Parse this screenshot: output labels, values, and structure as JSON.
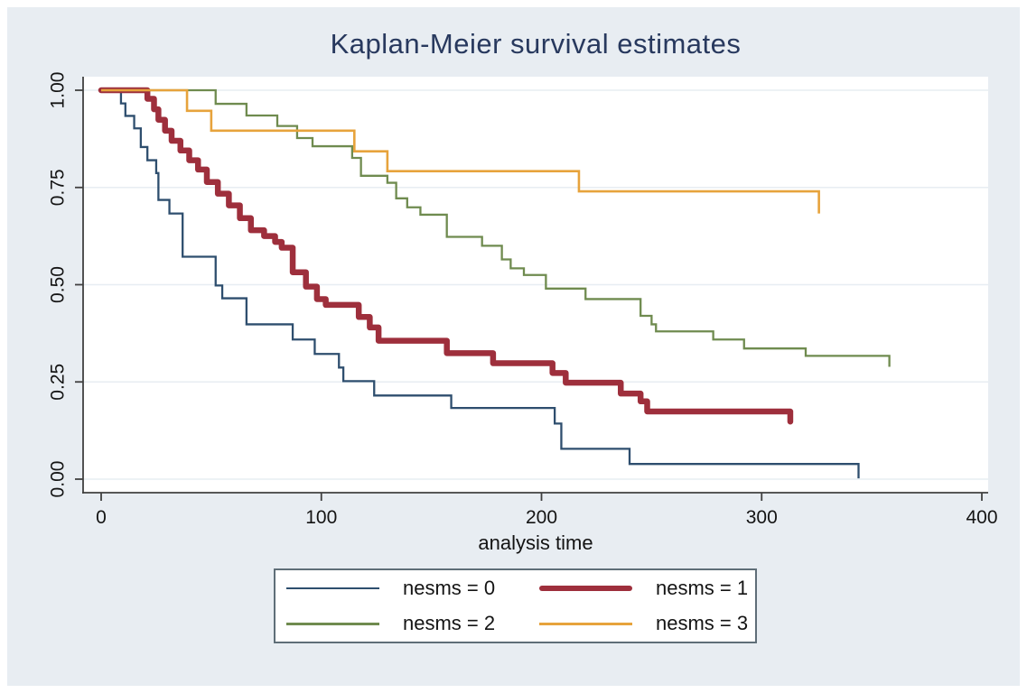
{
  "chart_data": {
    "type": "line",
    "variant": "kaplan-meier-step",
    "title": "Kaplan-Meier survival estimates",
    "title_color": "#28395e",
    "xlabel": "analysis time",
    "ylabel": "",
    "xlim": [
      0,
      400
    ],
    "ylim": [
      0,
      1
    ],
    "x_ticks": [
      0,
      100,
      200,
      300,
      400
    ],
    "x_tick_labels": [
      "0",
      "100",
      "200",
      "300",
      "400"
    ],
    "y_ticks": [
      0,
      0.25,
      0.5,
      0.75,
      1
    ],
    "y_tick_labels": [
      "0.00",
      "0.25",
      "0.50",
      "0.75",
      "1.00"
    ],
    "grid": "horizontal",
    "background": "#e8edf2",
    "plot_background": "#ffffff",
    "grid_color": "#e7edf2",
    "axis_color": "#404040",
    "legend_position": "bottom",
    "series": [
      {
        "label": "nesms = 0",
        "color": "#2e4e6e",
        "line_width": 2.3,
        "points": [
          [
            0,
            1
          ],
          [
            9,
            0.966
          ],
          [
            11,
            0.934
          ],
          [
            15,
            0.902
          ],
          [
            18,
            0.854
          ],
          [
            21,
            0.82
          ],
          [
            25,
            0.787
          ],
          [
            26,
            0.718
          ],
          [
            31,
            0.683
          ],
          [
            37,
            0.572
          ],
          [
            52,
            0.498
          ],
          [
            55,
            0.465
          ],
          [
            66,
            0.398
          ],
          [
            87,
            0.359
          ],
          [
            97,
            0.322
          ],
          [
            108,
            0.287
          ],
          [
            110,
            0.252
          ],
          [
            124,
            0.215
          ],
          [
            159,
            0.183
          ],
          [
            206,
            0.143
          ],
          [
            209,
            0.078
          ],
          [
            240,
            0.039
          ],
          [
            344,
            0.002
          ]
        ]
      },
      {
        "label": "nesms = 1",
        "color": "#9e2f3c",
        "line_width": 6.5,
        "points": [
          [
            0,
            1
          ],
          [
            21,
            0.978
          ],
          [
            24,
            0.951
          ],
          [
            26,
            0.924
          ],
          [
            29,
            0.896
          ],
          [
            32,
            0.87
          ],
          [
            36,
            0.845
          ],
          [
            40,
            0.82
          ],
          [
            44,
            0.796
          ],
          [
            48,
            0.764
          ],
          [
            53,
            0.734
          ],
          [
            58,
            0.704
          ],
          [
            63,
            0.671
          ],
          [
            68,
            0.64
          ],
          [
            74,
            0.625
          ],
          [
            79,
            0.61
          ],
          [
            82,
            0.595
          ],
          [
            87,
            0.532
          ],
          [
            93,
            0.495
          ],
          [
            98,
            0.463
          ],
          [
            102,
            0.448
          ],
          [
            117,
            0.417
          ],
          [
            122,
            0.39
          ],
          [
            126,
            0.356
          ],
          [
            157,
            0.324
          ],
          [
            178,
            0.298
          ],
          [
            205,
            0.273
          ],
          [
            211,
            0.248
          ],
          [
            236,
            0.22
          ],
          [
            245,
            0.2
          ],
          [
            248,
            0.174
          ],
          [
            313,
            0.148
          ]
        ]
      },
      {
        "label": "nesms = 2",
        "color": "#6f8b4f",
        "line_width": 2.3,
        "points": [
          [
            0,
            1
          ],
          [
            52,
            0.965
          ],
          [
            66,
            0.935
          ],
          [
            80,
            0.908
          ],
          [
            89,
            0.877
          ],
          [
            96,
            0.856
          ],
          [
            114,
            0.826
          ],
          [
            118,
            0.78
          ],
          [
            130,
            0.762
          ],
          [
            134,
            0.722
          ],
          [
            139,
            0.699
          ],
          [
            145,
            0.68
          ],
          [
            157,
            0.623
          ],
          [
            173,
            0.6
          ],
          [
            182,
            0.565
          ],
          [
            186,
            0.542
          ],
          [
            192,
            0.525
          ],
          [
            202,
            0.49
          ],
          [
            220,
            0.463
          ],
          [
            245,
            0.42
          ],
          [
            250,
            0.398
          ],
          [
            252,
            0.38
          ],
          [
            278,
            0.359
          ],
          [
            292,
            0.336
          ],
          [
            320,
            0.317
          ],
          [
            358,
            0.289
          ]
        ]
      },
      {
        "label": "nesms = 3",
        "color": "#e7a33c",
        "line_width": 2.6,
        "points": [
          [
            0,
            1
          ],
          [
            39,
            0.947
          ],
          [
            50,
            0.896
          ],
          [
            115,
            0.843
          ],
          [
            130,
            0.792
          ],
          [
            217,
            0.74
          ],
          [
            326,
            0.683
          ]
        ]
      }
    ]
  }
}
